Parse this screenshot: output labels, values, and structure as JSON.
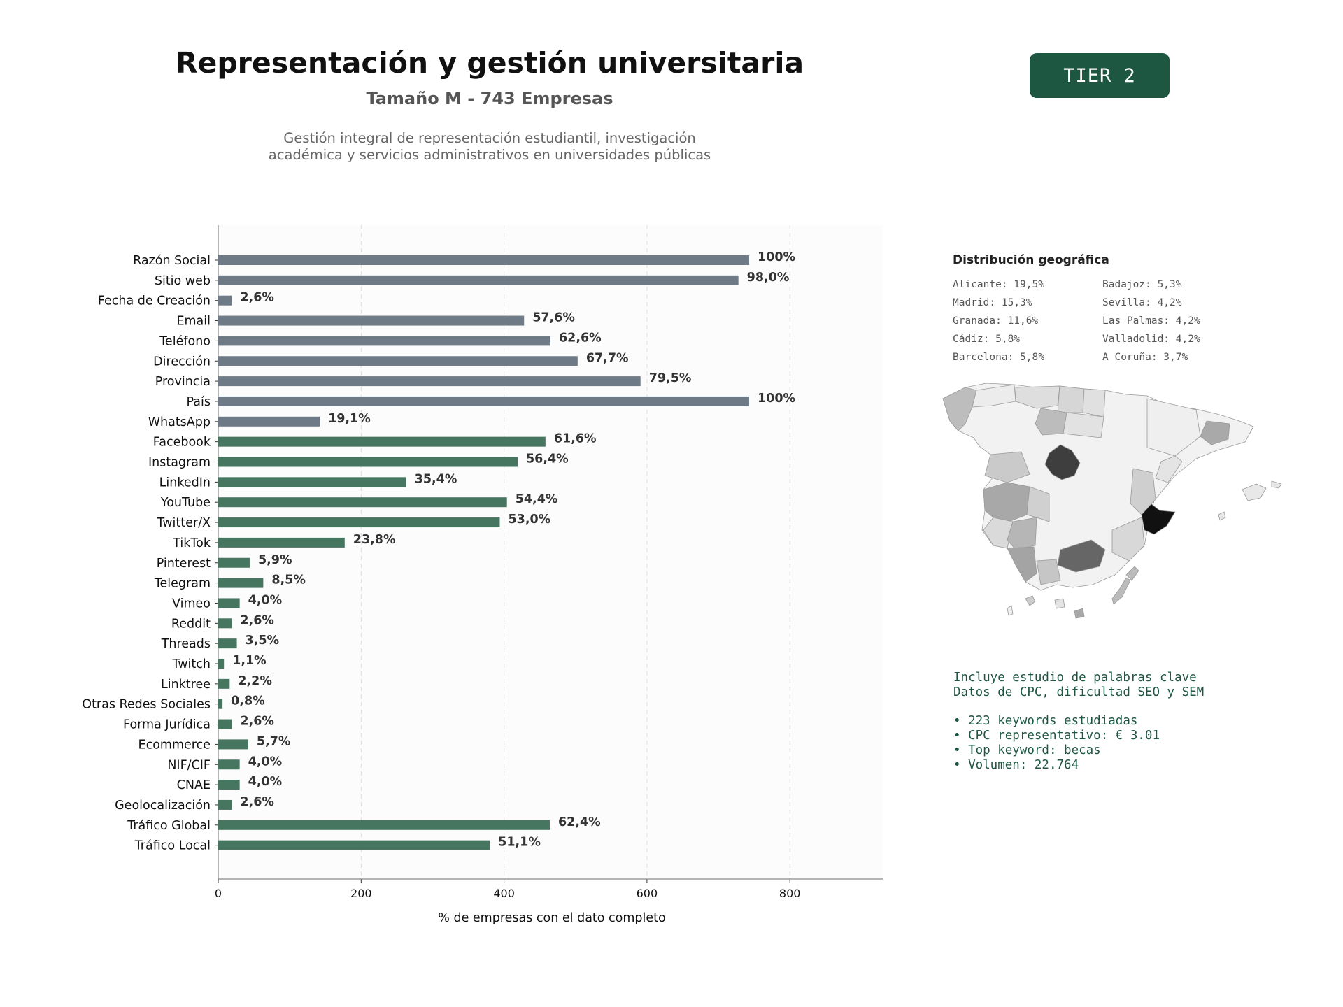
{
  "header": {
    "title": "Representación y gestión universitaria",
    "subtitle": "Tamaño M - 743 Empresas",
    "description_lines": [
      "Gestión integral de representación estudiantil, investigación",
      "académica y servicios administrativos en universidades públicas"
    ],
    "tier_label": "TIER 2"
  },
  "colors": {
    "gray_bar": "#6e7a86",
    "green_bar": "#467560",
    "badge": "#1e5741",
    "keywords_text": "#1e5741"
  },
  "chart_data": {
    "type": "bar",
    "orientation": "horizontal",
    "xlabel": "% de empresas con el dato completo",
    "xlim": [
      0,
      930
    ],
    "xticks": [
      0,
      200,
      400,
      600,
      800
    ],
    "grid": "vertical dashed",
    "categories": [
      "Razón Social",
      "Sitio web",
      "Fecha de Creación",
      "Email",
      "Teléfono",
      "Dirección",
      "Provincia",
      "País",
      "WhatsApp",
      "Facebook",
      "Instagram",
      "LinkedIn",
      "YouTube",
      "Twitter/X",
      "TikTok",
      "Pinterest",
      "Telegram",
      "Vimeo",
      "Reddit",
      "Threads",
      "Twitch",
      "Linktree",
      "Otras Redes Sociales",
      "Forma Jurídica",
      "Ecommerce",
      "NIF/CIF",
      "CNAE",
      "Geolocalización",
      "Tráfico Global",
      "Tráfico Local"
    ],
    "values": [
      743,
      728,
      19,
      428,
      465,
      503,
      591,
      743,
      142,
      458,
      419,
      263,
      404,
      394,
      177,
      44,
      63,
      30,
      19,
      26,
      8,
      16,
      6,
      19,
      42,
      30,
      30,
      19,
      464,
      380
    ],
    "labels": [
      "100%",
      "98,0%",
      "2,6%",
      "57,6%",
      "62,6%",
      "67,7%",
      "79,5%",
      "100%",
      "19,1%",
      "61,6%",
      "56,4%",
      "35,4%",
      "54,4%",
      "53,0%",
      "23,8%",
      "5,9%",
      "8,5%",
      "4,0%",
      "2,6%",
      "3,5%",
      "1,1%",
      "2,2%",
      "0,8%",
      "2,6%",
      "5,7%",
      "4,0%",
      "4,0%",
      "2,6%",
      "62,4%",
      "51,1%"
    ],
    "groups": [
      "gray",
      "gray",
      "gray",
      "gray",
      "gray",
      "gray",
      "gray",
      "gray",
      "gray",
      "green",
      "green",
      "green",
      "green",
      "green",
      "green",
      "green",
      "green",
      "green",
      "green",
      "green",
      "green",
      "green",
      "green",
      "green",
      "green",
      "green",
      "green",
      "green",
      "green",
      "green"
    ]
  },
  "geo": {
    "title": "Distribución geográfica",
    "entries": [
      "Alicante: 19,5%",
      "Badajoz: 5,3%",
      "Madrid: 15,3%",
      "Sevilla: 4,2%",
      "Granada: 11,6%",
      "Las Palmas: 4,2%",
      "Cádiz: 5,8%",
      "Valladolid: 4,2%",
      "Barcelona: 5,8%",
      "A Coruña: 3,7%"
    ]
  },
  "keywords": {
    "line1": "Incluye estudio de palabras clave",
    "line2": "Datos de CPC, dificultad SEO y SEM",
    "bullets": [
      "• 223 keywords estudiadas",
      "• CPC representativo: € 3.01",
      "• Top keyword: becas",
      "• Volumen: 22.764"
    ]
  }
}
